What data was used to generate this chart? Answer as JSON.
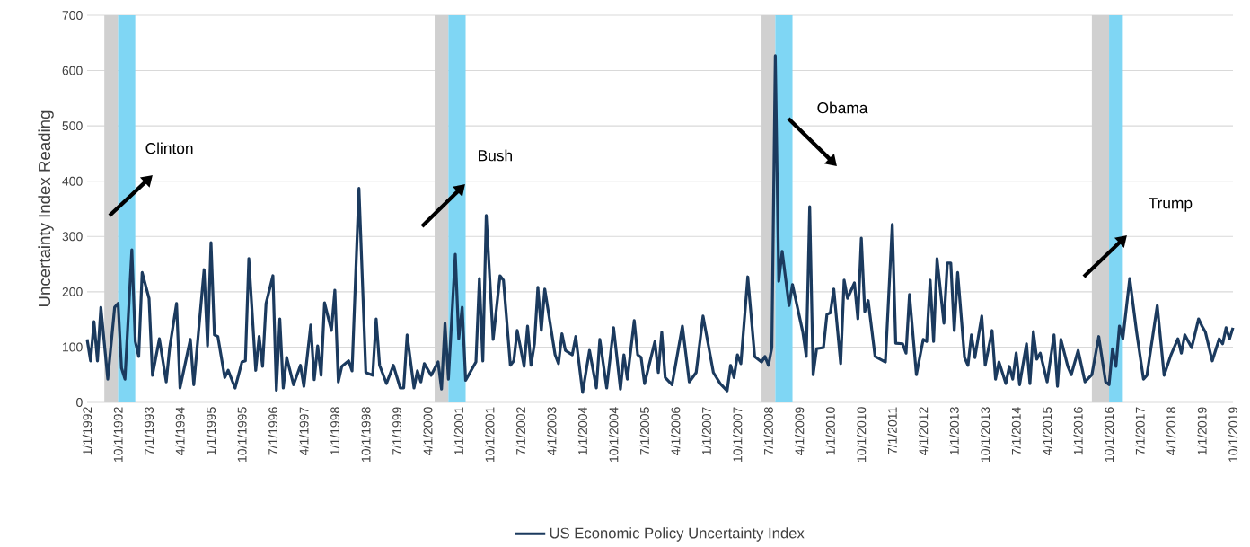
{
  "chart_data": {
    "type": "line",
    "ylabel": "Uncertainty Index Reading",
    "x": [
      "1992-01",
      "1992-02",
      "1992-03",
      "1992-04",
      "1992-05",
      "1992-07",
      "1992-09",
      "1992-10",
      "1992-11",
      "1992-12",
      "1993-02",
      "1993-03",
      "1993-04",
      "1993-05",
      "1993-07",
      "1993-08",
      "1993-10",
      "1993-12",
      "1994-01",
      "1994-03",
      "1994-04",
      "1994-07",
      "1994-08",
      "1994-11",
      "1994-12",
      "1995-01",
      "1995-02",
      "1995-03",
      "1995-05",
      "1995-06",
      "1995-08",
      "1995-10",
      "1995-11",
      "1995-12",
      "1996-02",
      "1996-03",
      "1996-04",
      "1996-05",
      "1996-07",
      "1996-08",
      "1996-09",
      "1996-10",
      "1996-11",
      "1997-01",
      "1997-03",
      "1997-04",
      "1997-06",
      "1997-07",
      "1997-08",
      "1997-09",
      "1997-10",
      "1997-12",
      "1998-01",
      "1998-02",
      "1998-03",
      "1998-05",
      "1998-06",
      "1998-08",
      "1998-10",
      "1998-12",
      "1999-01",
      "1999-02",
      "1999-04",
      "1999-06",
      "1999-08",
      "1999-09",
      "1999-10",
      "1999-12",
      "2000-01",
      "2000-02",
      "2000-03",
      "2000-05",
      "2000-07",
      "2000-08",
      "2000-09",
      "2000-10",
      "2000-12",
      "2001-01",
      "2001-02",
      "2001-03",
      "2001-06",
      "2001-07",
      "2001-08",
      "2001-09",
      "2001-11",
      "2002-01",
      "2002-02",
      "2002-04",
      "2002-05",
      "2002-06",
      "2002-08",
      "2002-09",
      "2002-10",
      "2002-11",
      "2002-12",
      "2003-01",
      "2003-02",
      "2003-05",
      "2003-06",
      "2003-07",
      "2003-08",
      "2003-10",
      "2003-11",
      "2004-01",
      "2004-03",
      "2004-05",
      "2004-06",
      "2004-08",
      "2004-10",
      "2004-12",
      "2005-01",
      "2005-02",
      "2005-04",
      "2005-05",
      "2005-06",
      "2005-07",
      "2005-10",
      "2005-11",
      "2005-12",
      "2006-01",
      "2006-03",
      "2006-06",
      "2006-08",
      "2006-10",
      "2006-12",
      "2007-03",
      "2007-05",
      "2007-07",
      "2007-08",
      "2007-09",
      "2007-10",
      "2007-11",
      "2008-01",
      "2008-03",
      "2008-05",
      "2008-06",
      "2008-07",
      "2008-08",
      "2008-09",
      "2008-10",
      "2008-11",
      "2009-01",
      "2009-02",
      "2009-05",
      "2009-06",
      "2009-07",
      "2009-08",
      "2009-09",
      "2009-11",
      "2009-12",
      "2010-01",
      "2010-02",
      "2010-04",
      "2010-05",
      "2010-06",
      "2010-08",
      "2010-09",
      "2010-10",
      "2010-11",
      "2010-12",
      "2011-02",
      "2011-05",
      "2011-07",
      "2011-08",
      "2011-10",
      "2011-11",
      "2011-12",
      "2012-02",
      "2012-04",
      "2012-05",
      "2012-06",
      "2012-07",
      "2012-08",
      "2012-10",
      "2012-11",
      "2012-12",
      "2013-01",
      "2013-02",
      "2013-04",
      "2013-05",
      "2013-06",
      "2013-07",
      "2013-09",
      "2013-10",
      "2013-12",
      "2014-01",
      "2014-02",
      "2014-04",
      "2014-05",
      "2014-06",
      "2014-07",
      "2014-08",
      "2014-10",
      "2014-11",
      "2014-12",
      "2015-01",
      "2015-02",
      "2015-04",
      "2015-06",
      "2015-07",
      "2015-08",
      "2015-10",
      "2015-11",
      "2016-01",
      "2016-03",
      "2016-05",
      "2016-07",
      "2016-09",
      "2016-10",
      "2016-11",
      "2016-12",
      "2017-01",
      "2017-02",
      "2017-04",
      "2017-06",
      "2017-08",
      "2017-09",
      "2017-12",
      "2018-02",
      "2018-04",
      "2018-06",
      "2018-07",
      "2018-08",
      "2018-10",
      "2018-12",
      "2019-01",
      "2019-02",
      "2019-04",
      "2019-06",
      "2019-07",
      "2019-08",
      "2019-09",
      "2019-10"
    ],
    "series": [
      {
        "name": "US Economic Policy Uncertainty Index",
        "color": "#1b3a5e",
        "values": [
          114,
          75,
          146,
          75,
          172,
          42,
          172,
          179,
          62,
          42,
          276,
          110,
          83,
          235,
          188,
          49,
          115,
          37,
          99,
          179,
          26,
          114,
          32,
          240,
          102,
          289,
          122,
          119,
          45,
          58,
          26,
          73,
          75,
          260,
          58,
          119,
          65,
          179,
          229,
          22,
          151,
          26,
          81,
          32,
          67,
          29,
          140,
          41,
          102,
          49,
          180,
          130,
          203,
          37,
          65,
          75,
          57,
          387,
          54,
          49,
          151,
          67,
          34,
          67,
          26,
          26,
          122,
          26,
          57,
          37,
          70,
          49,
          73,
          24,
          143,
          42,
          268,
          115,
          172,
          40,
          73,
          224,
          75,
          338,
          114,
          229,
          221,
          67,
          75,
          130,
          65,
          138,
          67,
          106,
          208,
          130,
          205,
          86,
          70,
          124,
          94,
          86,
          119,
          18,
          94,
          26,
          114,
          26,
          135,
          24,
          86,
          42,
          148,
          86,
          81,
          34,
          110,
          54,
          127,
          45,
          32,
          138,
          37,
          54,
          156,
          54,
          34,
          21,
          67,
          45,
          86,
          70,
          227,
          83,
          73,
          83,
          67,
          99,
          627,
          219,
          273,
          175,
          213,
          127,
          83,
          354,
          50,
          97,
          99,
          159,
          162,
          205,
          70,
          221,
          188,
          216,
          151,
          297,
          164,
          184,
          83,
          73,
          322,
          107,
          106,
          89,
          195,
          50,
          114,
          110,
          221,
          110,
          260,
          143,
          252,
          252,
          130,
          235,
          81,
          67,
          122,
          81,
          156,
          67,
          130,
          42,
          73,
          34,
          65,
          42,
          89,
          32,
          106,
          34,
          128,
          78,
          89,
          37,
          122,
          29,
          114,
          65,
          50,
          94,
          37,
          50,
          119,
          37,
          32,
          97,
          65,
          138,
          115,
          224,
          127,
          42,
          49,
          175,
          49,
          86,
          115,
          89,
          122,
          99,
          151,
          138,
          127,
          75,
          115,
          106,
          135,
          115,
          135
        ]
      }
    ],
    "xlim": [
      "1992-01",
      "2019-10"
    ],
    "xticks": [
      {
        "value": "1992-01",
        "label": "1/1/1992"
      },
      {
        "value": "1992-10",
        "label": "10/1/1992"
      },
      {
        "value": "1993-07",
        "label": "7/1/1993"
      },
      {
        "value": "1994-04",
        "label": "4/1/1994"
      },
      {
        "value": "1995-01",
        "label": "1/1/1995"
      },
      {
        "value": "1995-10",
        "label": "10/1/1995"
      },
      {
        "value": "1996-07",
        "label": "7/1/1996"
      },
      {
        "value": "1997-04",
        "label": "4/1/1997"
      },
      {
        "value": "1998-01",
        "label": "1/1/1998"
      },
      {
        "value": "1998-10",
        "label": "10/1/1998"
      },
      {
        "value": "1999-07",
        "label": "7/1/1999"
      },
      {
        "value": "2000-04",
        "label": "4/1/2000"
      },
      {
        "value": "2001-01",
        "label": "1/1/2001"
      },
      {
        "value": "2001-10",
        "label": "10/1/2001"
      },
      {
        "value": "2002-07",
        "label": "7/1/2002"
      },
      {
        "value": "2003-04",
        "label": "4/1/2003"
      },
      {
        "value": "2004-01",
        "label": "1/1/2004"
      },
      {
        "value": "2004-10",
        "label": "10/1/2004"
      },
      {
        "value": "2005-07",
        "label": "7/1/2005"
      },
      {
        "value": "2006-04",
        "label": "4/1/2006"
      },
      {
        "value": "2007-01",
        "label": "1/1/2007"
      },
      {
        "value": "2007-10",
        "label": "10/1/2007"
      },
      {
        "value": "2008-07",
        "label": "7/1/2008"
      },
      {
        "value": "2009-04",
        "label": "4/1/2009"
      },
      {
        "value": "2010-01",
        "label": "1/1/2010"
      },
      {
        "value": "2010-10",
        "label": "10/1/2010"
      },
      {
        "value": "2011-07",
        "label": "7/1/2011"
      },
      {
        "value": "2012-04",
        "label": "4/1/2012"
      },
      {
        "value": "2013-01",
        "label": "1/1/2013"
      },
      {
        "value": "2013-10",
        "label": "10/1/2013"
      },
      {
        "value": "2014-07",
        "label": "7/1/2014"
      },
      {
        "value": "2015-04",
        "label": "4/1/2015"
      },
      {
        "value": "2016-01",
        "label": "1/1/2016"
      },
      {
        "value": "2016-10",
        "label": "10/1/2016"
      },
      {
        "value": "2017-07",
        "label": "7/1/2017"
      },
      {
        "value": "2018-04",
        "label": "4/1/2018"
      },
      {
        "value": "2019-01",
        "label": "1/1/2019"
      },
      {
        "value": "2019-10",
        "label": "10/1/2019"
      }
    ],
    "ylim": [
      0,
      700
    ],
    "yticks": [
      0,
      100,
      200,
      300,
      400,
      500,
      600,
      700
    ],
    "grid": "y",
    "legend": "bottom",
    "bands": [
      {
        "axis": "x",
        "from": "1992-06",
        "to": "1992-10",
        "color": "#d0d0d0"
      },
      {
        "axis": "x",
        "from": "1992-10",
        "to": "1993-03",
        "color": "#7fd6f4"
      },
      {
        "axis": "x",
        "from": "2000-06",
        "to": "2000-10",
        "color": "#d0d0d0"
      },
      {
        "axis": "x",
        "from": "2000-10",
        "to": "2001-03",
        "color": "#7fd6f4"
      },
      {
        "axis": "x",
        "from": "2008-05",
        "to": "2008-09",
        "color": "#d0d0d0"
      },
      {
        "axis": "x",
        "from": "2008-09",
        "to": "2009-02",
        "color": "#7fd6f4"
      },
      {
        "axis": "x",
        "from": "2016-05",
        "to": "2016-10",
        "color": "#d0d0d0"
      },
      {
        "axis": "x",
        "from": "2016-10",
        "to": "2017-02",
        "color": "#7fd6f4"
      }
    ],
    "annotations": [
      "Clinton",
      "Bush",
      "Obama",
      "Trump"
    ]
  }
}
